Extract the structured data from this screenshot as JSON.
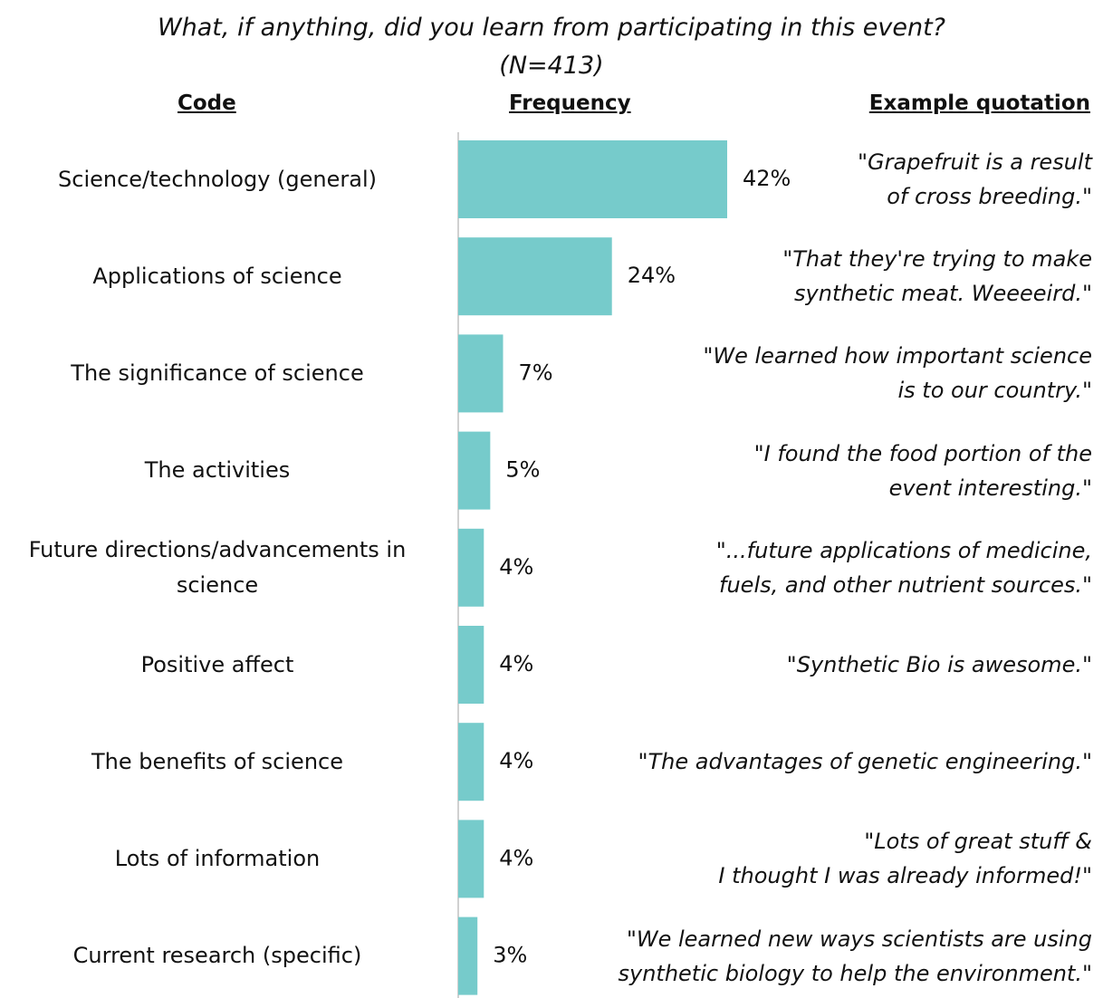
{
  "chart_data": {
    "type": "bar",
    "orientation": "horizontal",
    "title": "What, if anything, did you learn from participating in this event?",
    "subtitle": "(N=413)",
    "column_headers": {
      "code": "Code",
      "frequency": "Frequency",
      "quote": "Example quotation"
    },
    "categories": [
      "Science/technology (general)",
      "Applications of science",
      "The significance of science",
      "The activities",
      "Future directions/advancements in science",
      "Positive affect",
      "The benefits of science",
      "Lots of information",
      "Current research (specific)"
    ],
    "values": [
      42,
      24,
      7,
      5,
      4,
      4,
      4,
      4,
      3
    ],
    "value_labels": [
      "42%",
      "24%",
      "7%",
      "5%",
      "4%",
      "4%",
      "4%",
      "4%",
      "3%"
    ],
    "quotes": [
      "\"Grapefruit is a result\nof cross breeding.\"",
      "\"That they're trying to make\nsynthetic meat. Weeeeird.\"",
      "\"We learned how important science\nis to our country.\"",
      "\"I found the food portion of the\nevent interesting.\"",
      "\"...future applications of medicine,\nfuels, and other nutrient sources.\"",
      "\"Synthetic Bio is awesome.\"",
      "\"The advantages of genetic engineering.\"",
      "\"Lots of great stuff &\nI thought I was already informed!\"",
      "\"We learned new ways scientists are using\nsynthetic biology to help the environment.\""
    ],
    "xlim": [
      0,
      42
    ],
    "grid": false,
    "bar_color": "#76CBCB",
    "axis_color": "#d0d0d0"
  }
}
